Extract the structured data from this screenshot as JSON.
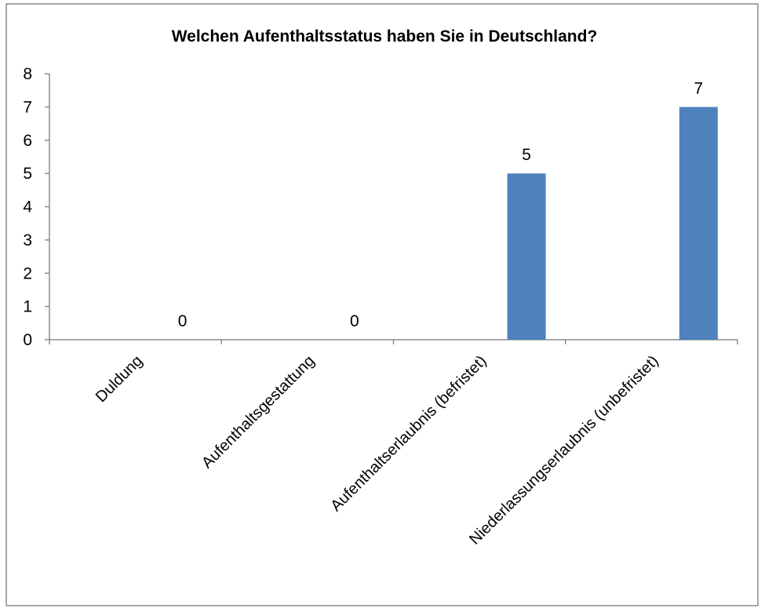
{
  "chart_data": {
    "type": "bar",
    "title": "Welchen Aufenthaltsstatus haben Sie in Deutschland?",
    "categories": [
      "Duldung",
      "Aufenthaltsgestattung",
      "Aufenthaltserlaubnis (befristet)",
      "Niederlassungserlaubnis (unbefristet)"
    ],
    "values": [
      0,
      0,
      5,
      7
    ],
    "data_labels": [
      "0",
      "0",
      "5",
      "7"
    ],
    "y_ticks": [
      "0",
      "1",
      "2",
      "3",
      "4",
      "5",
      "6",
      "7",
      "8"
    ],
    "xlabel": "",
    "ylabel": "",
    "ylim": [
      0,
      8
    ],
    "grid": false,
    "legend": "none",
    "bar_color": "#4F81BD"
  }
}
